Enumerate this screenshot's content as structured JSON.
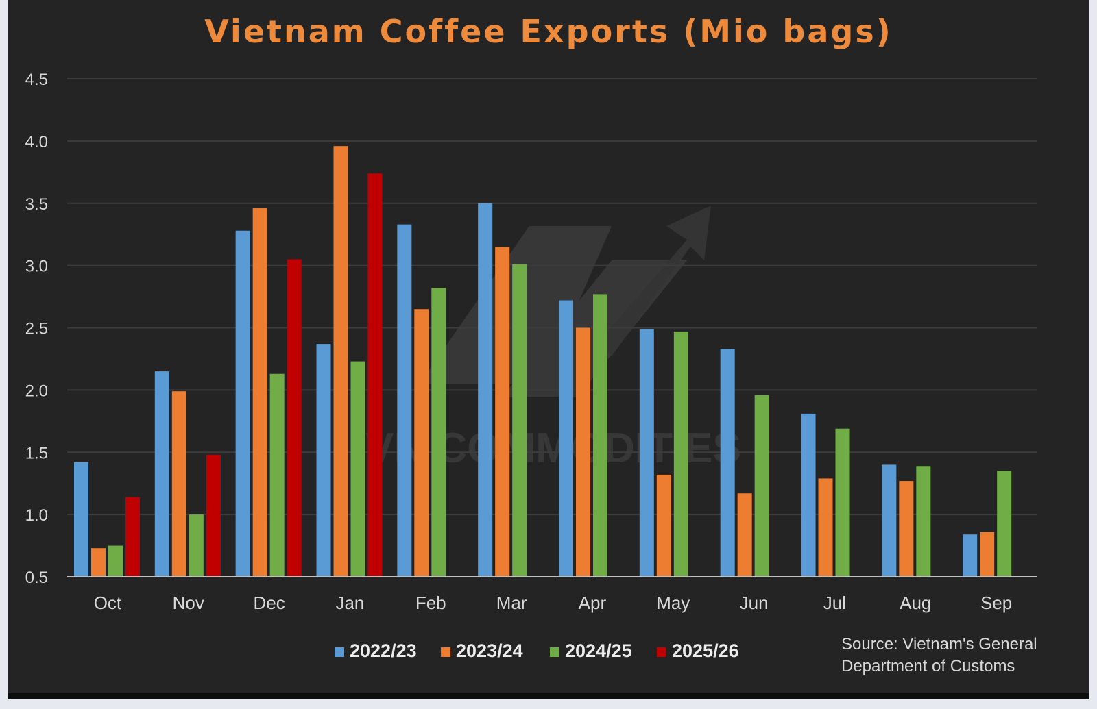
{
  "chart_data": {
    "type": "bar",
    "title": "Vietnam Coffee Exports (Mio bags)",
    "xlabel": "",
    "ylabel": "",
    "ylim": [
      0.5,
      4.5
    ],
    "yticks": [
      "0.5",
      "1.0",
      "1.5",
      "2.0",
      "2.5",
      "3.0",
      "3.5",
      "4.0",
      "4.5"
    ],
    "categories": [
      "Oct",
      "Nov",
      "Dec",
      "Jan",
      "Feb",
      "Mar",
      "Apr",
      "May",
      "Jun",
      "Jul",
      "Aug",
      "Sep"
    ],
    "series": [
      {
        "name": "2022/23",
        "color": "#5b9bd5",
        "values": [
          1.42,
          2.15,
          3.28,
          2.37,
          3.33,
          3.5,
          2.72,
          2.49,
          2.33,
          1.81,
          1.4,
          0.84
        ]
      },
      {
        "name": "2023/24",
        "color": "#ed7d31",
        "values": [
          0.73,
          1.99,
          3.46,
          3.96,
          2.65,
          3.15,
          2.5,
          1.32,
          1.17,
          1.29,
          1.27,
          0.86
        ]
      },
      {
        "name": "2024/25",
        "color": "#70ad47",
        "values": [
          0.75,
          1.0,
          2.13,
          2.23,
          2.82,
          3.01,
          2.77,
          2.47,
          1.96,
          1.69,
          1.39,
          1.35
        ]
      },
      {
        "name": "2025/26",
        "color": "#c00000",
        "values": [
          1.14,
          1.48,
          3.05,
          3.74,
          null,
          null,
          null,
          null,
          null,
          null,
          null,
          null
        ]
      }
    ],
    "legend_position": "bottom-center",
    "grid": true
  },
  "colors": {
    "background": "#242424",
    "title": "#ed8a3c",
    "axis_text": "#d9d9d9",
    "gridline": "#3c3c3c"
  },
  "source": {
    "line1": "Source: Vietnam's General",
    "line2": "Department of Customs"
  },
  "watermark": "VN COMMODITIES"
}
